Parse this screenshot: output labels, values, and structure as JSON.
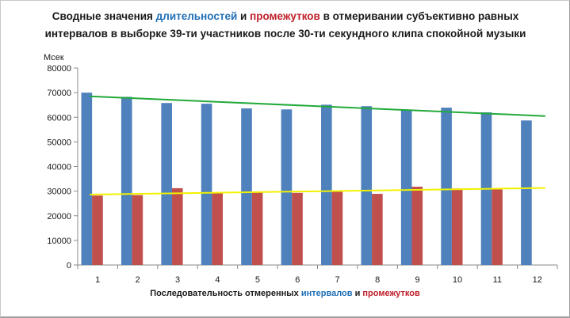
{
  "chart_data": {
    "type": "bar",
    "title": {
      "part1": "Сводные значения ",
      "word_blue": "длительностей",
      "part2": " и ",
      "word_red": "промежутков",
      "part3": " в отмеривании субъективно равных интервалов в выборке 39-ти участников после 30-ти секундного клипа спокойной музыки"
    },
    "ylabel": "Мсек",
    "xlabel": {
      "part1": "Последовательность  отмеренных  ",
      "word_blue": "интервалов",
      "part2": "  и ",
      "word_red": "промежутков"
    },
    "categories": [
      "1",
      "2",
      "3",
      "4",
      "5",
      "6",
      "7",
      "8",
      "9",
      "10",
      "11",
      "12"
    ],
    "series": [
      {
        "values": [
          70000,
          68300,
          65800,
          65500,
          63600,
          63200,
          65100,
          64500,
          63000,
          63900,
          62000,
          58700
        ],
        "color": "#4f81bd"
      },
      {
        "values": [
          28200,
          28400,
          31200,
          29300,
          29400,
          29300,
          29800,
          28900,
          31800,
          31100,
          30700,
          0
        ],
        "color": "#c0504d"
      }
    ],
    "trendlines": [
      {
        "from": 68500,
        "to": 60500,
        "color": "#22aa3a"
      },
      {
        "from": 28600,
        "to": 31300,
        "color": "#f2f200"
      }
    ],
    "ylim": [
      0,
      80000
    ],
    "yticks": [
      "0",
      "10000",
      "20000",
      "30000",
      "40000",
      "50000",
      "60000",
      "70000",
      "80000"
    ],
    "grid": false,
    "legend": "none"
  }
}
